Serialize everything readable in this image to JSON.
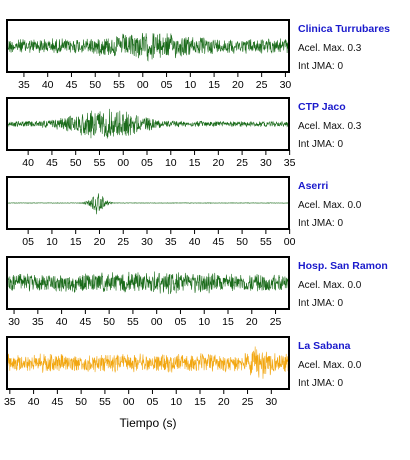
{
  "chart_data": {
    "type": "line",
    "xlabel": "Tiempo (s)",
    "panels": [
      {
        "station": "Clinica Turrubares",
        "acel_label": "Acel. Max. 0.3",
        "int_label": "Int JMA: 0",
        "color": "#1a6b1a",
        "tick_labels": [
          "35",
          "40",
          "45",
          "50",
          "55",
          "00",
          "05",
          "10",
          "15",
          "20",
          "25",
          "30"
        ],
        "tick_start_fraction": 0.06,
        "tick_step_fraction": 0.0843,
        "amplitude": 0.32,
        "burst_center": 0.5,
        "burst_width": 0.15,
        "burst_gain": 1.9
      },
      {
        "station": "CTP Jaco",
        "acel_label": "Acel. Max. 0.3",
        "int_label": "Int JMA: 0",
        "color": "#1a6b1a",
        "tick_labels": [
          "40",
          "45",
          "50",
          "55",
          "00",
          "05",
          "10",
          "15",
          "20",
          "25",
          "30",
          "35"
        ],
        "tick_start_fraction": 0.075,
        "tick_step_fraction": 0.0843,
        "amplitude": 0.12,
        "burst_center": 0.35,
        "burst_width": 0.14,
        "burst_gain": 5.5
      },
      {
        "station": "Aserri",
        "acel_label": "Acel. Max. 0.0",
        "int_label": "Int JMA: 0",
        "color": "#1a6b1a",
        "tick_labels": [
          "05",
          "10",
          "15",
          "20",
          "25",
          "30",
          "35",
          "40",
          "45",
          "50",
          "55",
          "00"
        ],
        "tick_start_fraction": 0.075,
        "tick_step_fraction": 0.0843,
        "amplitude": 0.01,
        "burst_center": 0.32,
        "burst_width": 0.03,
        "burst_gain": 45
      },
      {
        "station": "Hosp. San Ramon",
        "acel_label": "Acel. Max. 0.0",
        "int_label": "Int JMA: 0",
        "color": "#1a6b1a",
        "tick_labels": [
          "30",
          "35",
          "40",
          "45",
          "50",
          "55",
          "00",
          "05",
          "10",
          "15",
          "20",
          "25"
        ],
        "tick_start_fraction": 0.025,
        "tick_step_fraction": 0.0843,
        "amplitude": 0.38,
        "burst_center": 0.55,
        "burst_width": 0.2,
        "burst_gain": 1.3
      },
      {
        "station": "La Sabana",
        "acel_label": "Acel. Max. 0.0",
        "int_label": "Int JMA: 0",
        "color": "#f2a60f",
        "tick_labels": [
          "35",
          "40",
          "45",
          "50",
          "55",
          "00",
          "05",
          "10",
          "15",
          "20",
          "25",
          "30"
        ],
        "tick_start_fraction": 0.01,
        "tick_step_fraction": 0.0843,
        "amplitude": 0.38,
        "burst_center": 0.9,
        "burst_width": 0.04,
        "burst_gain": 1.9
      }
    ]
  }
}
